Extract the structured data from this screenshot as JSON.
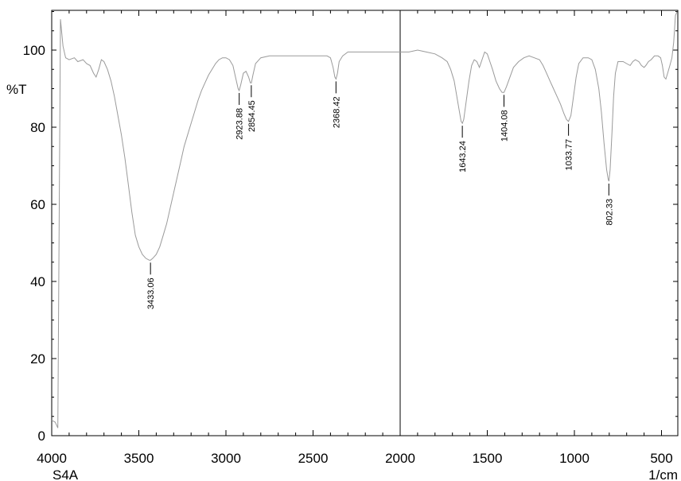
{
  "chart_data": {
    "type": "line",
    "ylabel": "%T",
    "xlabel": "1/cm",
    "sample_label": "S4A",
    "xlim": [
      4000,
      400
    ],
    "ylim": [
      0,
      110
    ],
    "x_ticks": [
      4000,
      3500,
      3000,
      2500,
      2000,
      1500,
      1000,
      500
    ],
    "y_ticks": [
      0,
      20,
      40,
      60,
      80,
      100
    ],
    "divider_x": 2000,
    "line_color": "#9a9a9a",
    "series": [
      {
        "values": [
          [
            4000,
            4
          ],
          [
            3980,
            3.5
          ],
          [
            3965,
            2
          ],
          [
            3950,
            108
          ],
          [
            3935,
            101
          ],
          [
            3920,
            98
          ],
          [
            3900,
            97.5
          ],
          [
            3870,
            98
          ],
          [
            3850,
            97
          ],
          [
            3820,
            97.5
          ],
          [
            3800,
            96.5
          ],
          [
            3780,
            96
          ],
          [
            3760,
            94
          ],
          [
            3745,
            93
          ],
          [
            3730,
            95
          ],
          [
            3715,
            97.5
          ],
          [
            3700,
            97
          ],
          [
            3680,
            95
          ],
          [
            3660,
            92
          ],
          [
            3640,
            88
          ],
          [
            3620,
            83
          ],
          [
            3600,
            78
          ],
          [
            3580,
            72
          ],
          [
            3560,
            65
          ],
          [
            3540,
            58
          ],
          [
            3520,
            52
          ],
          [
            3500,
            49
          ],
          [
            3480,
            47
          ],
          [
            3460,
            46
          ],
          [
            3440,
            45.5
          ],
          [
            3433,
            45.5
          ],
          [
            3420,
            46
          ],
          [
            3400,
            47
          ],
          [
            3380,
            49
          ],
          [
            3360,
            52
          ],
          [
            3340,
            55
          ],
          [
            3320,
            59
          ],
          [
            3300,
            63
          ],
          [
            3280,
            67
          ],
          [
            3260,
            71
          ],
          [
            3240,
            75
          ],
          [
            3220,
            78
          ],
          [
            3200,
            81
          ],
          [
            3180,
            84
          ],
          [
            3160,
            87
          ],
          [
            3140,
            89.5
          ],
          [
            3120,
            91.5
          ],
          [
            3100,
            93.5
          ],
          [
            3080,
            95
          ],
          [
            3060,
            96.5
          ],
          [
            3040,
            97.5
          ],
          [
            3020,
            98
          ],
          [
            3000,
            98
          ],
          [
            2980,
            97.5
          ],
          [
            2960,
            96
          ],
          [
            2945,
            93
          ],
          [
            2930,
            90
          ],
          [
            2924,
            89.5
          ],
          [
            2915,
            91
          ],
          [
            2900,
            94
          ],
          [
            2885,
            94.5
          ],
          [
            2870,
            93
          ],
          [
            2860,
            91.5
          ],
          [
            2854,
            91.5
          ],
          [
            2845,
            93.5
          ],
          [
            2830,
            96.5
          ],
          [
            2800,
            98
          ],
          [
            2750,
            98.5
          ],
          [
            2700,
            98.5
          ],
          [
            2600,
            98.5
          ],
          [
            2500,
            98.5
          ],
          [
            2420,
            98.5
          ],
          [
            2400,
            98
          ],
          [
            2385,
            95.5
          ],
          [
            2375,
            93
          ],
          [
            2368,
            92.5
          ],
          [
            2360,
            94
          ],
          [
            2350,
            97
          ],
          [
            2330,
            98.5
          ],
          [
            2300,
            99.5
          ],
          [
            2200,
            99.5
          ],
          [
            2100,
            99.5
          ],
          [
            2050,
            99.5
          ],
          [
            2000,
            99.5
          ],
          [
            1950,
            99.5
          ],
          [
            1900,
            100
          ],
          [
            1850,
            99.5
          ],
          [
            1800,
            99
          ],
          [
            1760,
            98
          ],
          [
            1730,
            97
          ],
          [
            1710,
            95
          ],
          [
            1690,
            92
          ],
          [
            1675,
            88
          ],
          [
            1660,
            84
          ],
          [
            1650,
            81.5
          ],
          [
            1643,
            81
          ],
          [
            1635,
            82
          ],
          [
            1620,
            87
          ],
          [
            1605,
            92
          ],
          [
            1590,
            96
          ],
          [
            1575,
            97.5
          ],
          [
            1560,
            97
          ],
          [
            1545,
            95.5
          ],
          [
            1530,
            97.5
          ],
          [
            1515,
            99.5
          ],
          [
            1500,
            99
          ],
          [
            1485,
            97
          ],
          [
            1470,
            95
          ],
          [
            1450,
            92
          ],
          [
            1430,
            90
          ],
          [
            1415,
            89
          ],
          [
            1404,
            89
          ],
          [
            1390,
            90.5
          ],
          [
            1370,
            93
          ],
          [
            1350,
            95.5
          ],
          [
            1320,
            97
          ],
          [
            1290,
            98
          ],
          [
            1260,
            98.5
          ],
          [
            1230,
            98
          ],
          [
            1200,
            97.5
          ],
          [
            1180,
            96
          ],
          [
            1160,
            94
          ],
          [
            1140,
            92
          ],
          [
            1120,
            90
          ],
          [
            1100,
            88
          ],
          [
            1080,
            86
          ],
          [
            1060,
            83.5
          ],
          [
            1045,
            82
          ],
          [
            1034,
            81.5
          ],
          [
            1020,
            83
          ],
          [
            1005,
            88
          ],
          [
            990,
            93
          ],
          [
            975,
            96.5
          ],
          [
            950,
            98
          ],
          [
            920,
            98
          ],
          [
            900,
            97.5
          ],
          [
            880,
            95
          ],
          [
            860,
            90
          ],
          [
            845,
            84
          ],
          [
            830,
            76
          ],
          [
            815,
            69
          ],
          [
            806,
            66.5
          ],
          [
            802,
            66
          ],
          [
            795,
            69
          ],
          [
            785,
            78
          ],
          [
            775,
            88
          ],
          [
            765,
            94
          ],
          [
            750,
            97
          ],
          [
            720,
            97
          ],
          [
            700,
            96.5
          ],
          [
            680,
            96
          ],
          [
            665,
            97
          ],
          [
            650,
            97.5
          ],
          [
            630,
            97
          ],
          [
            615,
            96
          ],
          [
            600,
            95.5
          ],
          [
            590,
            96
          ],
          [
            575,
            97
          ],
          [
            560,
            97.5
          ],
          [
            540,
            98.5
          ],
          [
            520,
            98.5
          ],
          [
            505,
            98
          ],
          [
            495,
            96
          ],
          [
            485,
            93
          ],
          [
            475,
            92.5
          ],
          [
            465,
            94
          ],
          [
            452,
            96
          ],
          [
            440,
            98
          ],
          [
            430,
            102
          ],
          [
            420,
            109
          ],
          [
            410,
            110
          ]
        ]
      }
    ],
    "peak_labels": [
      {
        "x": 3433.06,
        "y": 45.5,
        "label": "3433.06"
      },
      {
        "x": 2923.88,
        "y": 89.5,
        "label": "2923.88"
      },
      {
        "x": 2854.45,
        "y": 91.5,
        "label": "2854.45"
      },
      {
        "x": 2368.42,
        "y": 92.5,
        "label": "2368.42"
      },
      {
        "x": 1643.24,
        "y": 81,
        "label": "1643.24"
      },
      {
        "x": 1404.08,
        "y": 89,
        "label": "1404.08"
      },
      {
        "x": 1033.77,
        "y": 81.5,
        "label": "1033.77"
      },
      {
        "x": 802.33,
        "y": 66,
        "label": "802.33"
      }
    ]
  }
}
